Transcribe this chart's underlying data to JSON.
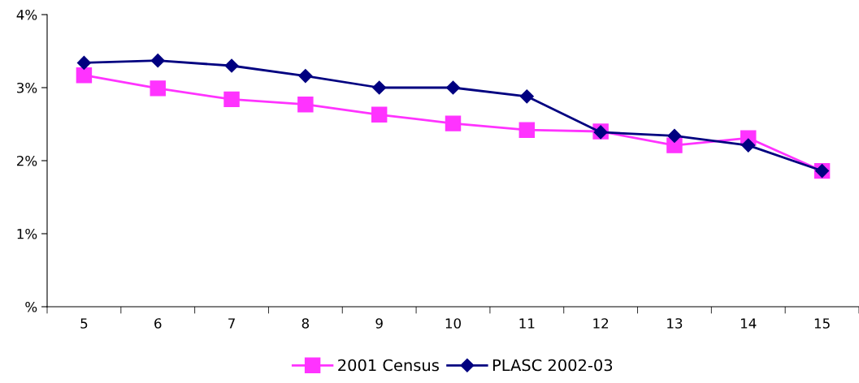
{
  "chart_data": {
    "type": "line",
    "categories": [
      "5",
      "6",
      "7",
      "8",
      "9",
      "10",
      "11",
      "12",
      "13",
      "14",
      "15"
    ],
    "series": [
      {
        "name": "2001 Census",
        "color": "#ff33ff",
        "marker": "square",
        "values": [
          3.17,
          2.99,
          2.84,
          2.77,
          2.63,
          2.51,
          2.42,
          2.4,
          2.21,
          2.31,
          1.86
        ]
      },
      {
        "name": "PLASC 2002-03",
        "color": "#000080",
        "marker": "diamond",
        "values": [
          3.34,
          3.37,
          3.3,
          3.16,
          3.0,
          3.0,
          2.88,
          2.39,
          2.34,
          2.21,
          1.86
        ]
      }
    ],
    "ylim": [
      0,
      4
    ],
    "yticks": [
      {
        "value": 0,
        "label": "%"
      },
      {
        "value": 1,
        "label": "1%"
      },
      {
        "value": 2,
        "label": "2%"
      },
      {
        "value": 3,
        "label": "3%"
      },
      {
        "value": 4,
        "label": "4%"
      }
    ],
    "grid": false,
    "legend": "bottom"
  }
}
